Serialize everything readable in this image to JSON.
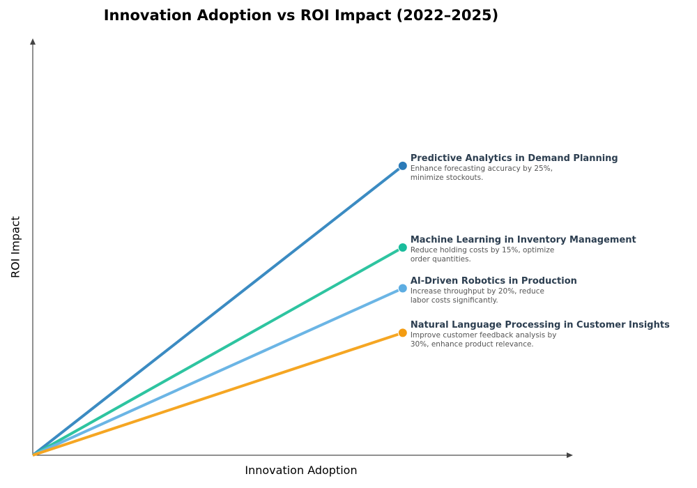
{
  "chart_data": {
    "type": "line",
    "title": "Innovation Adoption vs ROI Impact (2022–2025)",
    "xlabel": "Innovation Adoption",
    "ylabel": "ROI Impact",
    "xlim": [
      0,
      1.46
    ],
    "ylim": [
      0,
      1.12
    ],
    "grid": false,
    "ticks": false,
    "series": [
      {
        "name": "Predictive Analytics in Demand Planning",
        "description": "Enhance forecasting accuracy by 25%, minimize stockouts.",
        "x": [
          0,
          1
        ],
        "y": [
          0,
          0.78
        ],
        "color": "#3b8bc2",
        "marker_color": "#2a7ab8"
      },
      {
        "name": "Machine Learning in Inventory Management",
        "description": "Reduce holding costs by 15%, optimize order quantities.",
        "x": [
          0,
          1
        ],
        "y": [
          0,
          0.56
        ],
        "color": "#2ec4a0",
        "marker_color": "#1abc9c"
      },
      {
        "name": "AI-Driven Robotics in Production",
        "description": "Increase throughput by 20%, reduce labor costs significantly.",
        "x": [
          0,
          1
        ],
        "y": [
          0,
          0.45
        ],
        "color": "#6bb5e5",
        "marker_color": "#5dade2"
      },
      {
        "name": "Natural Language Processing in Customer Insights",
        "description": "Improve customer feedback analysis by 30%, enhance product relevance.",
        "x": [
          0,
          1
        ],
        "y": [
          0,
          0.33
        ],
        "color": "#f5a623",
        "marker_color": "#f39c12"
      }
    ]
  }
}
